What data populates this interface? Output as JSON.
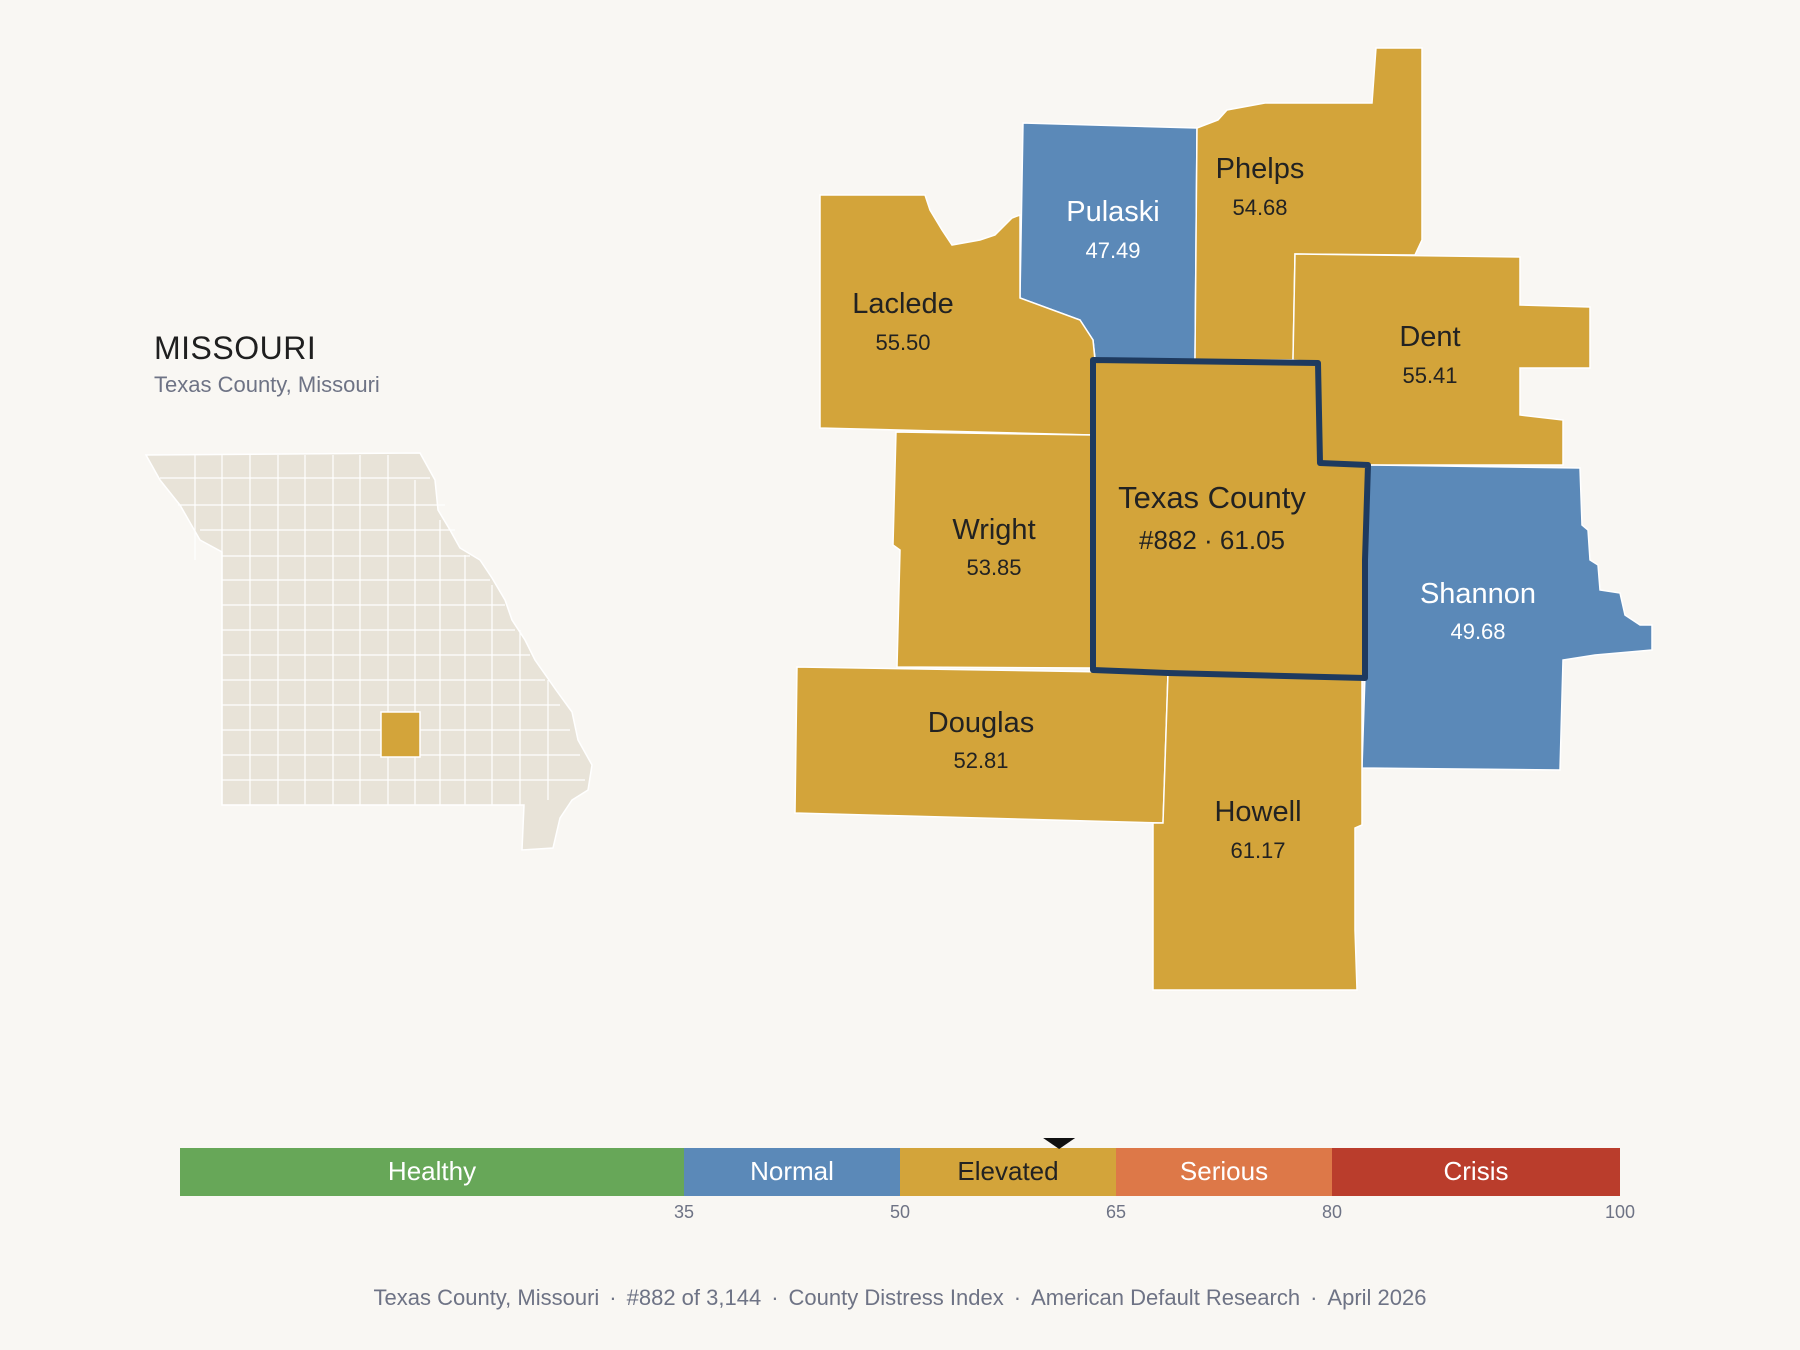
{
  "state": {
    "title": "MISSOURI",
    "subtitle": "Texas County, Missouri",
    "highlight_color": "#d3a43a",
    "base_color": "#e8e3d8"
  },
  "colors": {
    "elevated": "#d3a43a",
    "normal": "#5b89b8",
    "outline": "#1e3a5f"
  },
  "counties": [
    {
      "id": "pulaski",
      "name": "Pulaski",
      "score": "47.49",
      "category": "Normal",
      "color": "#5b89b8"
    },
    {
      "id": "phelps",
      "name": "Phelps",
      "score": "54.68",
      "category": "Elevated",
      "color": "#d3a43a"
    },
    {
      "id": "laclede",
      "name": "Laclede",
      "score": "55.50",
      "category": "Elevated",
      "color": "#d3a43a"
    },
    {
      "id": "dent",
      "name": "Dent",
      "score": "55.41",
      "category": "Elevated",
      "color": "#d3a43a"
    },
    {
      "id": "wright",
      "name": "Wright",
      "score": "53.85",
      "category": "Elevated",
      "color": "#d3a43a"
    },
    {
      "id": "texas",
      "name": "Texas County",
      "score": "#882 · 61.05",
      "category": "Elevated",
      "color": "#d3a43a"
    },
    {
      "id": "shannon",
      "name": "Shannon",
      "score": "49.68",
      "category": "Normal",
      "color": "#5b89b8"
    },
    {
      "id": "douglas",
      "name": "Douglas",
      "score": "52.81",
      "category": "Elevated",
      "color": "#d3a43a"
    },
    {
      "id": "howell",
      "name": "Howell",
      "score": "61.17",
      "category": "Elevated",
      "color": "#d3a43a"
    }
  ],
  "scale": {
    "min": 0,
    "max": 100,
    "marker_value": 61.05,
    "segments": [
      {
        "label": "Healthy",
        "from": 0,
        "to": 35,
        "color": "#67a758"
      },
      {
        "label": "Normal",
        "from": 35,
        "to": 50,
        "color": "#5b89b8"
      },
      {
        "label": "Elevated",
        "from": 50,
        "to": 65,
        "color": "#d3a43a"
      },
      {
        "label": "Serious",
        "from": 65,
        "to": 80,
        "color": "#dd7848"
      },
      {
        "label": "Crisis",
        "from": 80,
        "to": 100,
        "color": "#ba3d2c"
      }
    ],
    "ticks": [
      "35",
      "50",
      "65",
      "80",
      "100"
    ]
  },
  "footer": {
    "county": "Texas County, Missouri",
    "rank": "#882 of 3,144",
    "index": "County Distress Index",
    "source": "American Default Research",
    "date": "April 2026",
    "separator": "·"
  }
}
